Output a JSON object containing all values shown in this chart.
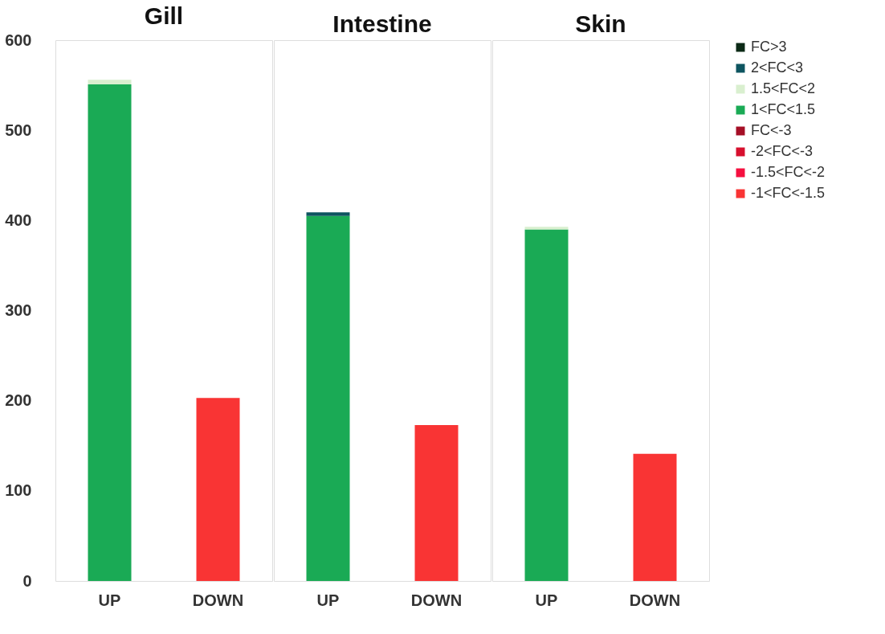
{
  "chart_data": [
    {
      "type": "bar",
      "title": "Gill",
      "stacked": true,
      "categories": [
        "UP",
        "DOWN"
      ],
      "ylim": [
        0,
        600
      ],
      "yticks": [
        0,
        100,
        200,
        300,
        400,
        500,
        600
      ],
      "grid": false,
      "series": [
        {
          "color": "#f93434",
          "values": [
            null,
            203
          ]
        },
        {
          "color": "#1aaa55",
          "values": [
            551,
            null
          ]
        },
        {
          "color": "#d9efcf",
          "values": [
            5,
            null
          ]
        }
      ]
    },
    {
      "type": "bar",
      "title": "Intestine",
      "stacked": true,
      "categories": [
        "UP",
        "DOWN"
      ],
      "ylim": [
        0,
        600
      ],
      "tick_labels": "x",
      "grid": false,
      "series": [
        {
          "color": "#f93434",
          "values": [
            null,
            173
          ]
        },
        {
          "color": "#1aaa55",
          "values": [
            405,
            null
          ]
        },
        {
          "color": "#0e5560",
          "values": [
            4,
            null
          ]
        }
      ]
    },
    {
      "type": "bar",
      "title": "Skin",
      "stacked": true,
      "categories": [
        "UP",
        "DOWN"
      ],
      "ylim": [
        0,
        600
      ],
      "tick_labels": "x",
      "grid": false,
      "legend": "right",
      "series": [
        {
          "name": "-1<FC<-1.5",
          "color": "#f93434",
          "values": [
            null,
            141
          ]
        },
        {
          "name": "-1.5<FC<-2",
          "color": "#f5103f",
          "values": [
            null,
            null
          ]
        },
        {
          "name": "-2<FC<-3",
          "color": "#d7102e",
          "values": [
            null,
            null
          ]
        },
        {
          "name": "FC<-3",
          "color": "#a50f26",
          "values": [
            null,
            null
          ]
        },
        {
          "name": "1<FC<1.5",
          "color": "#1aaa55",
          "values": [
            390,
            null
          ]
        },
        {
          "name": "1.5<FC<2",
          "color": "#d9efcf",
          "values": [
            3,
            null
          ]
        },
        {
          "name": "2<FC<3",
          "color": "#0e5560",
          "values": [
            null,
            null
          ]
        },
        {
          "name": "FC>3",
          "color": "#0b2a16",
          "values": [
            null,
            null
          ]
        }
      ]
    }
  ]
}
